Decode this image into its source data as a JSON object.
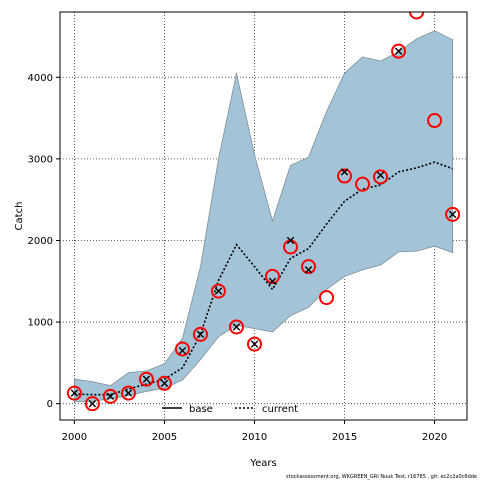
{
  "chart_data": {
    "type": "line",
    "xlabel": "Years",
    "ylabel": "Catch",
    "xlim": [
      1999.2,
      2021.8
    ],
    "ylim": [
      -200,
      4800
    ],
    "x_ticks": [
      2000,
      2005,
      2010,
      2015,
      2020
    ],
    "y_ticks": [
      0,
      1000,
      2000,
      3000,
      4000
    ],
    "grid": "dotted",
    "legend_position": "bottom-center",
    "colors": {
      "band": "#a3c4d6",
      "band_edge": "#7f8f99",
      "observed_circle": "#ff0000",
      "line": "#000000"
    },
    "band": {
      "x": [
        2000,
        2001,
        2002,
        2003,
        2004,
        2005,
        2006,
        2007,
        2008,
        2009,
        2010,
        2011,
        2012,
        2013,
        2014,
        2015,
        2016,
        2017,
        2018,
        2019,
        2020,
        2021
      ],
      "lower": [
        20,
        30,
        60,
        100,
        150,
        190,
        290,
        540,
        820,
        960,
        920,
        880,
        1080,
        1180,
        1400,
        1560,
        1640,
        1700,
        1860,
        1870,
        1930,
        1850
      ],
      "upper": [
        300,
        270,
        220,
        380,
        400,
        490,
        800,
        1680,
        3000,
        4050,
        3050,
        2240,
        2920,
        3020,
        3580,
        4050,
        4250,
        4200,
        4310,
        4470,
        4570,
        4460
      ]
    },
    "series": [
      {
        "name": "base",
        "style": "solid",
        "values": [
          120,
          50,
          90,
          130,
          170,
          250,
          350,
          850,
          1000,
          940,
          730,
          1560,
          2000,
          1640,
          null,
          2800,
          null,
          2780,
          4320,
          null,
          null,
          2320
        ]
      },
      {
        "name": "current",
        "style": "dotted",
        "values": [
          120,
          110,
          110,
          180,
          240,
          300,
          440,
          850,
          1510,
          1950,
          1680,
          1400,
          1780,
          1900,
          2200,
          2480,
          2630,
          2680,
          2840,
          2890,
          2960,
          2880
        ]
      }
    ],
    "observed": {
      "x": [
        2000,
        2001,
        2002,
        2003,
        2004,
        2005,
        2006,
        2007,
        2008,
        2009,
        2010,
        2011,
        2012,
        2013,
        2014,
        2015,
        2016,
        2017,
        2018,
        2019,
        2020,
        2021
      ],
      "values": [
        130,
        0,
        90,
        130,
        300,
        250,
        670,
        850,
        1380,
        940,
        730,
        1560,
        1920,
        1680,
        1300,
        2790,
        2690,
        2780,
        4320,
        4800,
        3470,
        2320
      ]
    },
    "base_points": {
      "x": [
        2000,
        2001,
        2002,
        2003,
        2004,
        2005,
        2006,
        2007,
        2008,
        2009,
        2010,
        2011,
        2012,
        2013,
        2015,
        2017,
        2018,
        2021
      ],
      "values": [
        130,
        0,
        90,
        130,
        300,
        250,
        650,
        850,
        1380,
        940,
        730,
        1500,
        2000,
        1640,
        2840,
        2800,
        4320,
        2320
      ]
    }
  },
  "footer": "stockassessment.org, WKGREEN_GRI Nuuk Test, r16785 , git: ec2c2a0c6dde"
}
